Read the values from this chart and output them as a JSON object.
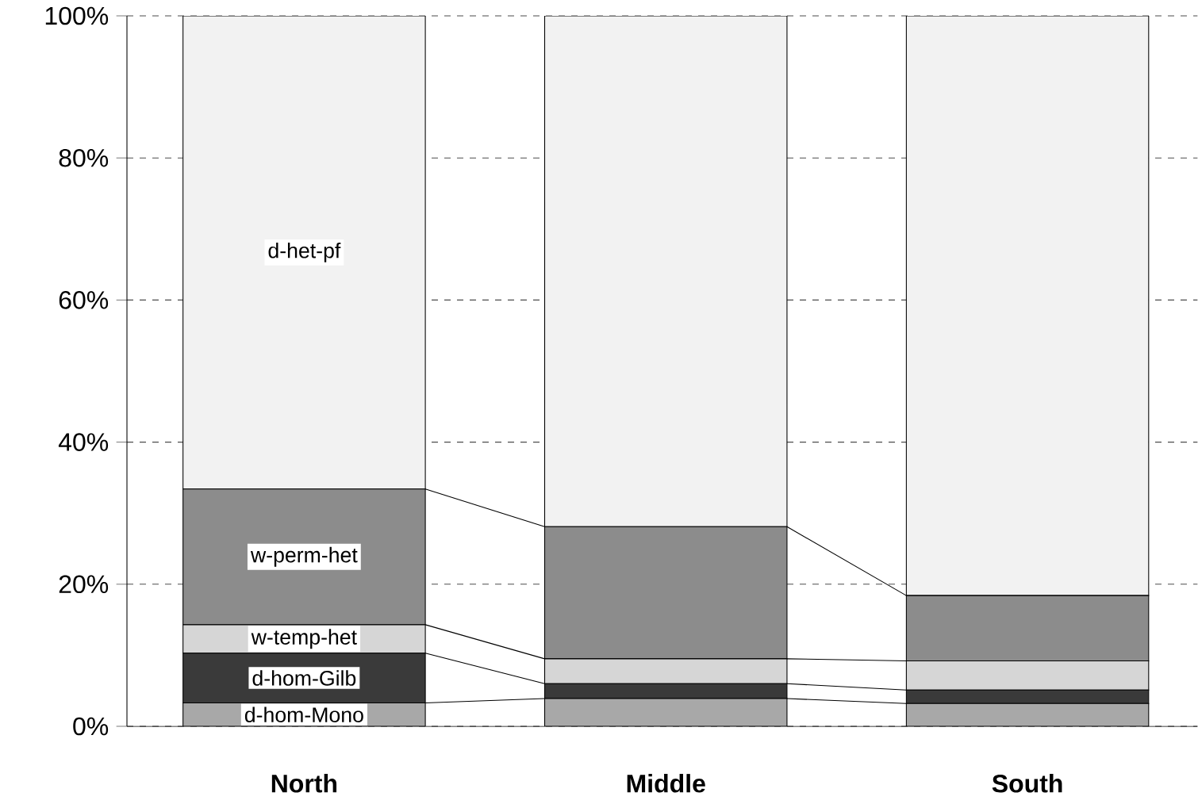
{
  "chart_data": {
    "type": "bar",
    "stacked": true,
    "categories": [
      "North",
      "Middle",
      "South"
    ],
    "series": [
      {
        "name": "d-hom-Mono",
        "color": "#a8a8a8",
        "values": [
          3.3,
          3.9,
          3.2
        ]
      },
      {
        "name": "d-hom-Gilb",
        "color": "#3a3a3a",
        "values": [
          7.0,
          2.1,
          1.9
        ]
      },
      {
        "name": "w-temp-het",
        "color": "#d6d6d6",
        "values": [
          4.0,
          3.5,
          4.1
        ]
      },
      {
        "name": "w-perm-het",
        "color": "#8c8c8c",
        "values": [
          19.1,
          18.6,
          9.2
        ]
      },
      {
        "name": "d-het-pf",
        "color": "#f2f2f2",
        "values": [
          66.6,
          71.9,
          81.6
        ]
      }
    ],
    "ylim": [
      0,
      100
    ],
    "yticks": [
      {
        "value": 0,
        "label": "0%"
      },
      {
        "value": 20,
        "label": "20%"
      },
      {
        "value": 40,
        "label": "40%"
      },
      {
        "value": 60,
        "label": "60%"
      },
      {
        "value": 80,
        "label": "80%"
      },
      {
        "value": 100,
        "label": "100%"
      }
    ],
    "grid": "y"
  }
}
